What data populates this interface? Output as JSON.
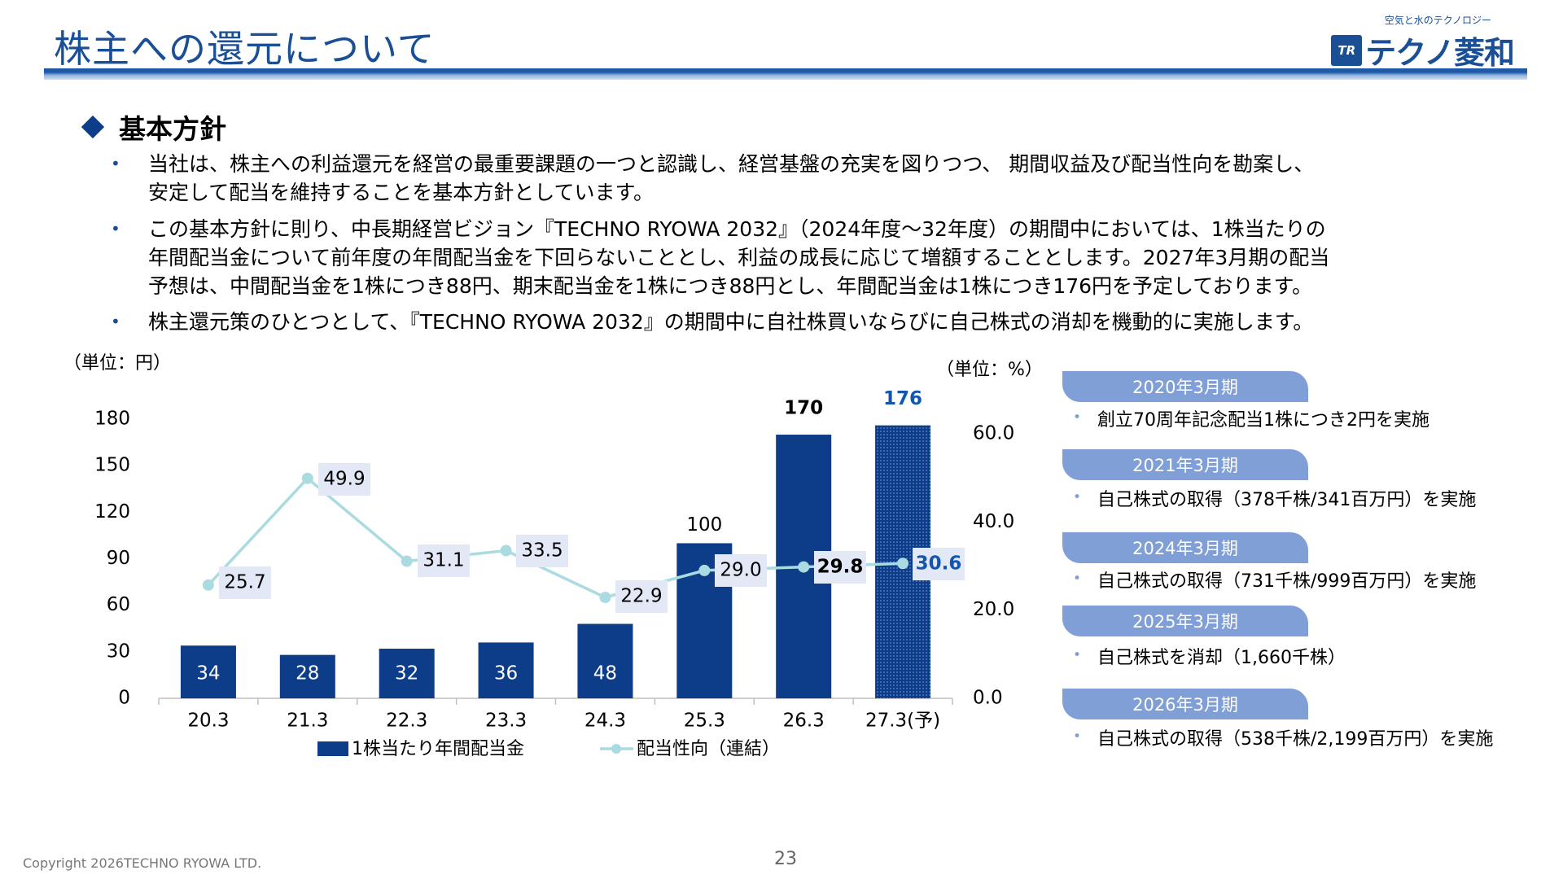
{
  "header": {
    "title": "株主への還元について",
    "logo_tagline": "空気と水のテクノロジー",
    "logo_mark": "TR",
    "logo_text": "テクノ菱和"
  },
  "section": {
    "title": "基本方針"
  },
  "bullets": [
    "当社は、株主への利益還元を経営の最重要課題の一つと認識し、経営基盤の充実を図りつつ、 期間収益及び配当性向を勘案し、\n安定して配当を維持することを基本方針としています。",
    "この基本方針に則り、中長期経営ビジョン『TECHNO RYOWA 2032』（2024年度～32年度）の期間中においては、1株当たりの\n年間配当金について前年度の年間配当金を下回らないこととし、利益の成長に応じて増額することとします。2027年3月期の配当\n予想は、中間配当金を1株につき88円、期末配当金を1株につき88円とし、年間配当金は1株につき176円を予定しております。",
    "株主還元策のひとつとして、『TECHNO RYOWA 2032』の期間中に自社株買いならびに自己株式の消却を機動的に実施します。"
  ],
  "units": {
    "left": "（単位：円）",
    "right": "（単位：%）"
  },
  "chart_data": {
    "type": "bar",
    "categories": [
      "20.3",
      "21.3",
      "22.3",
      "23.3",
      "24.3",
      "25.3",
      "26.3",
      "27.3(予)"
    ],
    "series": [
      {
        "name": "1株当たり年間配当金",
        "type": "bar",
        "axis": "left",
        "values": [
          34,
          28,
          32,
          36,
          48,
          100,
          170,
          176
        ],
        "labels": [
          "34",
          "28",
          "32",
          "36",
          "48",
          "100",
          "170",
          "176"
        ]
      },
      {
        "name": "配当性向（連結）",
        "type": "line",
        "axis": "right",
        "values": [
          25.7,
          49.9,
          31.1,
          33.5,
          22.9,
          29.0,
          29.8,
          30.6
        ],
        "labels": [
          "25.7",
          "49.9",
          "31.1",
          "33.5",
          "22.9",
          "29.0",
          "29.8",
          "30.6"
        ]
      }
    ],
    "y_left_ticks": [
      "0",
      "30",
      "60",
      "90",
      "120",
      "150",
      "180"
    ],
    "y_left_range": [
      0,
      180
    ],
    "y_right_ticks": [
      "0.0",
      "20.0",
      "40.0",
      "60.0"
    ],
    "y_right_range": [
      0,
      63
    ],
    "legend_position": "bottom",
    "colors": {
      "bar": "#0d3c88",
      "bar_forecast": "#1456ad",
      "line": "#a9dbe0",
      "label_box": "#e3e8f6",
      "forecast_text": "#1456ad"
    }
  },
  "events": [
    {
      "period": "2020年3月期",
      "item": "創立70周年記念配当1株につき2円を実施"
    },
    {
      "period": "2021年3月期",
      "item": "自己株式の取得（378千株/341百万円）を実施"
    },
    {
      "period": "2024年3月期",
      "item": "自己株式の取得（731千株/999百万円）を実施"
    },
    {
      "period": "2025年3月期",
      "item": "自己株式を消却（1,660千株）"
    },
    {
      "period": "2026年3月期",
      "item": "自己株式の取得（538千株/2,199百万円）を実施"
    }
  ],
  "footer": {
    "copyright": "Copyright 2026TECHNO RYOWA LTD.",
    "page_number": "23"
  }
}
